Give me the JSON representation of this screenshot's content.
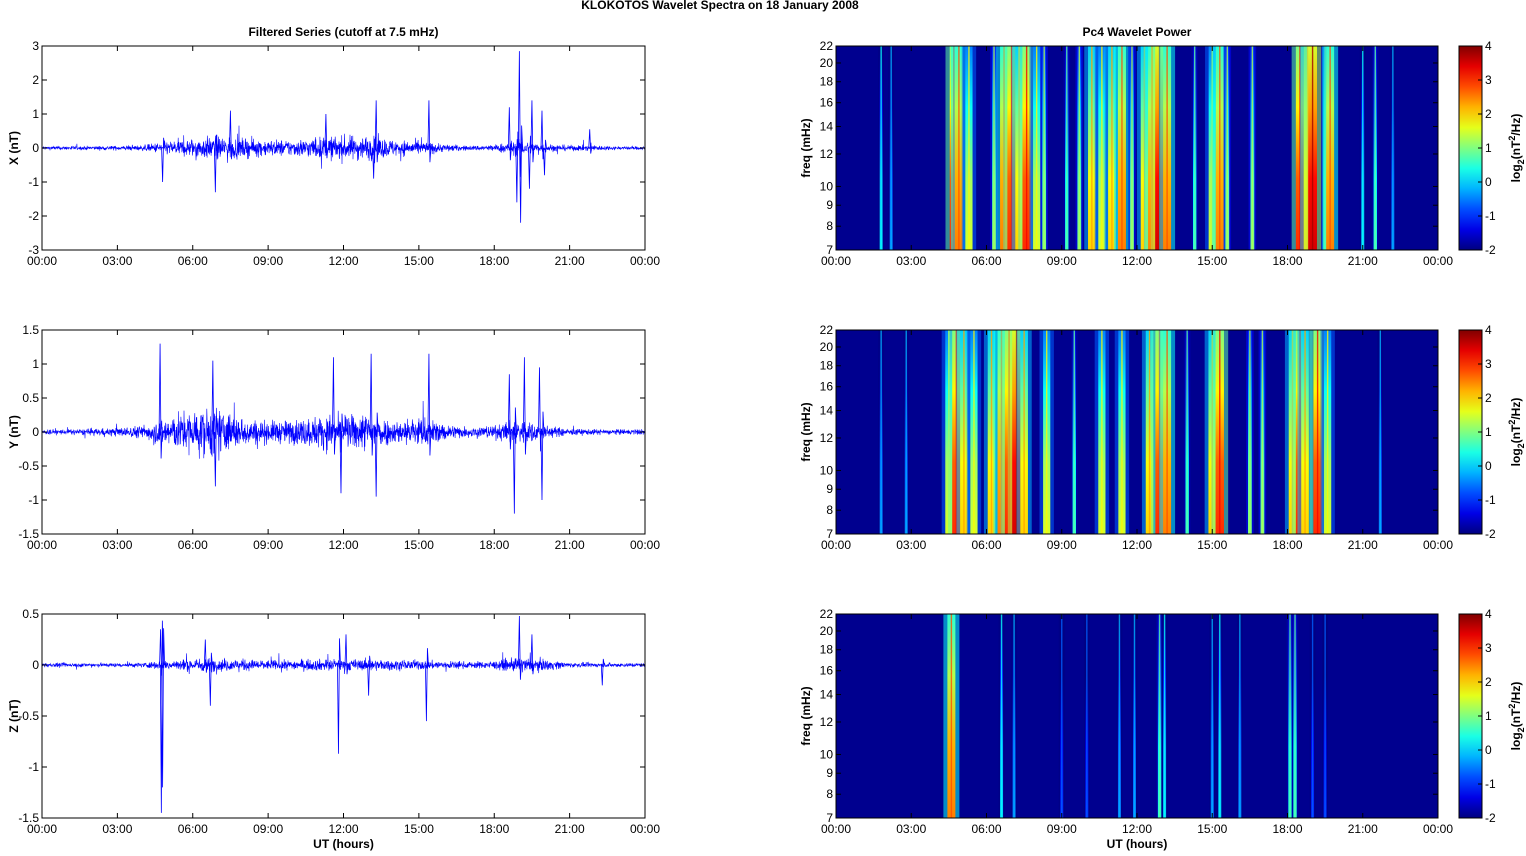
{
  "figure_title": "KLOKOTOS Wavelet Spectra on 18 January   2008",
  "chart_data": [
    {
      "type": "line",
      "panel": "X",
      "title": "Filtered Series (cutoff at 7.5 mHz)",
      "ylabel": "X (nT)",
      "xlabel": "",
      "xlim_hours": [
        0,
        24
      ],
      "ylim": [
        -3,
        3
      ],
      "yticks": [
        -3,
        -2,
        -1,
        0,
        1,
        2,
        3
      ],
      "xticks": [
        "00:00",
        "03:00",
        "06:00",
        "09:00",
        "12:00",
        "15:00",
        "18:00",
        "21:00",
        "00:00"
      ],
      "color": "#0000ff",
      "envelope_hours": [
        0,
        1,
        2,
        3,
        4,
        5,
        6,
        7,
        8,
        9,
        10,
        11,
        12,
        13,
        14,
        15,
        16,
        17,
        18,
        19,
        20,
        21,
        22,
        23,
        24
      ],
      "envelope_amplitude": [
        0.07,
        0.07,
        0.07,
        0.08,
        0.1,
        0.25,
        0.35,
        0.45,
        0.35,
        0.3,
        0.3,
        0.4,
        0.45,
        0.45,
        0.3,
        0.25,
        0.15,
        0.08,
        0.12,
        0.3,
        0.15,
        0.1,
        0.1,
        0.06,
        0.06
      ],
      "spikes": [
        [
          4.8,
          -1.0
        ],
        [
          6.9,
          -1.3
        ],
        [
          7.5,
          1.1
        ],
        [
          11.3,
          1.0
        ],
        [
          13.3,
          1.4
        ],
        [
          13.2,
          -0.9
        ],
        [
          15.4,
          1.4
        ],
        [
          18.6,
          1.2
        ],
        [
          18.9,
          -1.6
        ],
        [
          19.0,
          2.85
        ],
        [
          19.05,
          -2.2
        ],
        [
          19.4,
          -1.2
        ],
        [
          19.5,
          1.4
        ],
        [
          19.9,
          1.1
        ],
        [
          20.0,
          -0.8
        ],
        [
          21.8,
          0.55
        ]
      ]
    },
    {
      "type": "line",
      "panel": "Y",
      "title": "",
      "ylabel": "Y (nT)",
      "xlabel": "",
      "xlim_hours": [
        0,
        24
      ],
      "ylim": [
        -1.5,
        1.5
      ],
      "yticks": [
        -1.5,
        -1,
        -0.5,
        0,
        0.5,
        1,
        1.5
      ],
      "xticks": [
        "00:00",
        "03:00",
        "06:00",
        "09:00",
        "12:00",
        "15:00",
        "18:00",
        "21:00",
        "00:00"
      ],
      "color": "#0000ff",
      "envelope_hours": [
        0,
        1,
        2,
        3,
        4,
        5,
        6,
        7,
        8,
        9,
        10,
        11,
        12,
        13,
        14,
        15,
        16,
        17,
        18,
        19,
        20,
        21,
        22,
        23,
        24
      ],
      "envelope_amplitude": [
        0.05,
        0.05,
        0.06,
        0.08,
        0.12,
        0.3,
        0.4,
        0.45,
        0.25,
        0.2,
        0.22,
        0.3,
        0.3,
        0.35,
        0.2,
        0.3,
        0.15,
        0.1,
        0.12,
        0.25,
        0.12,
        0.06,
        0.05,
        0.05,
        0.05
      ],
      "spikes": [
        [
          4.7,
          1.3
        ],
        [
          6.8,
          1.05
        ],
        [
          6.9,
          -0.8
        ],
        [
          11.6,
          1.1
        ],
        [
          11.9,
          -0.9
        ],
        [
          13.1,
          1.15
        ],
        [
          13.3,
          -0.95
        ],
        [
          15.4,
          1.15
        ],
        [
          18.6,
          0.85
        ],
        [
          18.8,
          -1.2
        ],
        [
          19.2,
          1.1
        ],
        [
          19.8,
          0.95
        ],
        [
          19.9,
          -1.0
        ]
      ]
    },
    {
      "type": "line",
      "panel": "Z",
      "title": "",
      "ylabel": "Z (nT)",
      "xlabel": "UT (hours)",
      "xlim_hours": [
        0,
        24
      ],
      "ylim": [
        -1.5,
        0.5
      ],
      "yticks": [
        -1.5,
        -1,
        -0.5,
        0,
        0.5
      ],
      "xticks": [
        "00:00",
        "03:00",
        "06:00",
        "09:00",
        "12:00",
        "15:00",
        "18:00",
        "21:00",
        "00:00"
      ],
      "color": "#0000ff",
      "envelope_hours": [
        0,
        1,
        2,
        3,
        4,
        5,
        6,
        7,
        8,
        9,
        10,
        11,
        12,
        13,
        14,
        15,
        16,
        17,
        18,
        19,
        20,
        21,
        22,
        23,
        24
      ],
      "envelope_amplitude": [
        0.025,
        0.025,
        0.025,
        0.025,
        0.03,
        0.06,
        0.08,
        0.08,
        0.07,
        0.06,
        0.06,
        0.07,
        0.07,
        0.07,
        0.06,
        0.06,
        0.05,
        0.04,
        0.05,
        0.09,
        0.07,
        0.03,
        0.025,
        0.025,
        0.025
      ],
      "spikes": [
        [
          4.75,
          -1.45
        ],
        [
          4.72,
          0.35
        ],
        [
          4.8,
          -1.2
        ],
        [
          6.5,
          0.25
        ],
        [
          6.7,
          -0.4
        ],
        [
          11.8,
          -0.87
        ],
        [
          12.1,
          0.3
        ],
        [
          13.0,
          -0.3
        ],
        [
          15.3,
          -0.55
        ],
        [
          19.0,
          0.48
        ],
        [
          19.5,
          0.3
        ],
        [
          22.3,
          -0.2
        ]
      ]
    },
    {
      "type": "heatmap",
      "panel": "X-spectrum",
      "title": "Pc4 Wavelet Power",
      "ylabel": "freq (mHz)",
      "xlabel": "",
      "xlim_hours": [
        0,
        24
      ],
      "ylim_mHz": [
        7,
        22
      ],
      "yticks": [
        7,
        8,
        9,
        10,
        12,
        14,
        16,
        18,
        20,
        22
      ],
      "xticks": [
        "00:00",
        "03:00",
        "06:00",
        "09:00",
        "12:00",
        "15:00",
        "18:00",
        "21:00",
        "00:00"
      ],
      "colorbar": {
        "ticks": [
          -2,
          -1,
          0,
          1,
          2,
          3,
          4
        ],
        "range": [
          -2,
          4
        ],
        "colormap": "jet"
      },
      "bursts_hour_power": [
        [
          1.8,
          0
        ],
        [
          2.2,
          -0.5
        ],
        [
          4.7,
          3
        ],
        [
          4.9,
          2.5
        ],
        [
          5.3,
          1.5
        ],
        [
          6.3,
          1
        ],
        [
          6.7,
          2.5
        ],
        [
          7.0,
          3
        ],
        [
          7.3,
          2
        ],
        [
          7.6,
          3
        ],
        [
          8.0,
          1.5
        ],
        [
          8.3,
          1
        ],
        [
          9.2,
          0.5
        ],
        [
          9.7,
          1
        ],
        [
          10.2,
          2
        ],
        [
          10.6,
          1.5
        ],
        [
          11.0,
          2
        ],
        [
          11.4,
          2.5
        ],
        [
          11.8,
          1
        ],
        [
          12.3,
          2
        ],
        [
          12.6,
          2.5
        ],
        [
          12.9,
          3.5
        ],
        [
          13.2,
          2.5
        ],
        [
          14.3,
          0.5
        ],
        [
          15.0,
          1.5
        ],
        [
          15.3,
          2.5
        ],
        [
          15.6,
          1
        ],
        [
          16.6,
          1
        ],
        [
          18.5,
          3
        ],
        [
          18.8,
          2
        ],
        [
          19.0,
          3.5
        ],
        [
          19.5,
          1
        ],
        [
          19.7,
          2.5
        ],
        [
          21.0,
          0
        ],
        [
          21.5,
          0.5
        ],
        [
          22.2,
          -0.5
        ]
      ]
    },
    {
      "type": "heatmap",
      "panel": "Y-spectrum",
      "title": "",
      "ylabel": "freq (mHz)",
      "xlabel": "",
      "xlim_hours": [
        0,
        24
      ],
      "ylim_mHz": [
        7,
        22
      ],
      "yticks": [
        7,
        8,
        9,
        10,
        12,
        14,
        16,
        18,
        20,
        22
      ],
      "xticks": [
        "00:00",
        "03:00",
        "06:00",
        "09:00",
        "12:00",
        "15:00",
        "18:00",
        "21:00",
        "00:00"
      ],
      "colorbar": {
        "ticks": [
          -2,
          -1,
          0,
          1,
          2,
          3,
          4
        ],
        "range": [
          -2,
          4
        ],
        "colormap": "jet"
      },
      "bursts_hour_power": [
        [
          1.8,
          -0.5
        ],
        [
          2.8,
          -0.5
        ],
        [
          4.5,
          1.5
        ],
        [
          4.8,
          3
        ],
        [
          5.1,
          2
        ],
        [
          5.5,
          1.5
        ],
        [
          6.2,
          2
        ],
        [
          6.6,
          2.5
        ],
        [
          6.9,
          3
        ],
        [
          7.2,
          3.5
        ],
        [
          7.5,
          2
        ],
        [
          8.4,
          1.5
        ],
        [
          9.5,
          0.5
        ],
        [
          10.6,
          1.5
        ],
        [
          11.4,
          1.5
        ],
        [
          12.5,
          2
        ],
        [
          12.9,
          3
        ],
        [
          13.2,
          2.5
        ],
        [
          14.0,
          0.5
        ],
        [
          15.0,
          2
        ],
        [
          15.3,
          3
        ],
        [
          16.5,
          1
        ],
        [
          17.0,
          1
        ],
        [
          18.2,
          2
        ],
        [
          18.5,
          3
        ],
        [
          18.7,
          2
        ],
        [
          19.2,
          3
        ],
        [
          19.6,
          1.5
        ],
        [
          21.7,
          -0.5
        ]
      ]
    },
    {
      "type": "heatmap",
      "panel": "Z-spectrum",
      "title": "",
      "ylabel": "freq (mHz)",
      "xlabel": "UT (hours)",
      "xlim_hours": [
        0,
        24
      ],
      "ylim_mHz": [
        7,
        22
      ],
      "yticks": [
        7,
        8,
        9,
        10,
        12,
        14,
        16,
        18,
        20,
        22
      ],
      "xticks": [
        "00:00",
        "03:00",
        "06:00",
        "09:00",
        "12:00",
        "15:00",
        "18:00",
        "21:00",
        "00:00"
      ],
      "colorbar": {
        "ticks": [
          -2,
          -1,
          0,
          1,
          2,
          3,
          4
        ],
        "range": [
          -2,
          4
        ],
        "colormap": "jet"
      },
      "bursts_hour_power": [
        [
          4.6,
          2.5
        ],
        [
          6.6,
          0
        ],
        [
          7.1,
          -0.5
        ],
        [
          9.0,
          -1
        ],
        [
          10.0,
          -1
        ],
        [
          11.3,
          -0.5
        ],
        [
          11.9,
          -0.5
        ],
        [
          12.9,
          0.5
        ],
        [
          13.1,
          0
        ],
        [
          15.0,
          -0.5
        ],
        [
          15.3,
          0
        ],
        [
          16.1,
          -0.5
        ],
        [
          18.1,
          0.5
        ],
        [
          18.3,
          0.5
        ],
        [
          19.0,
          -1
        ],
        [
          19.5,
          -1
        ]
      ]
    }
  ],
  "colorbar_label": {
    "base": "log",
    "sub": "2",
    "mid": "(nT",
    "sup": "2",
    "end": "/Hz)"
  }
}
